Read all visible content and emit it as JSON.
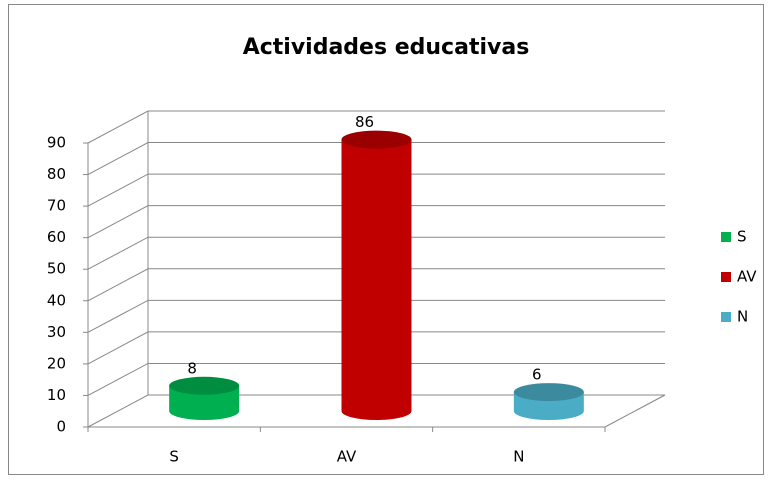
{
  "chart_data": {
    "type": "bar",
    "title": "Actividades educativas",
    "categories": [
      "S",
      "AV",
      "N"
    ],
    "values": [
      8,
      86,
      6
    ],
    "colors": [
      "#00b050",
      "#c00000",
      "#4bacc6"
    ],
    "ylim": [
      0,
      90
    ],
    "yticks": [
      0,
      10,
      20,
      30,
      40,
      50,
      60,
      70,
      80,
      90
    ],
    "grid": true
  }
}
